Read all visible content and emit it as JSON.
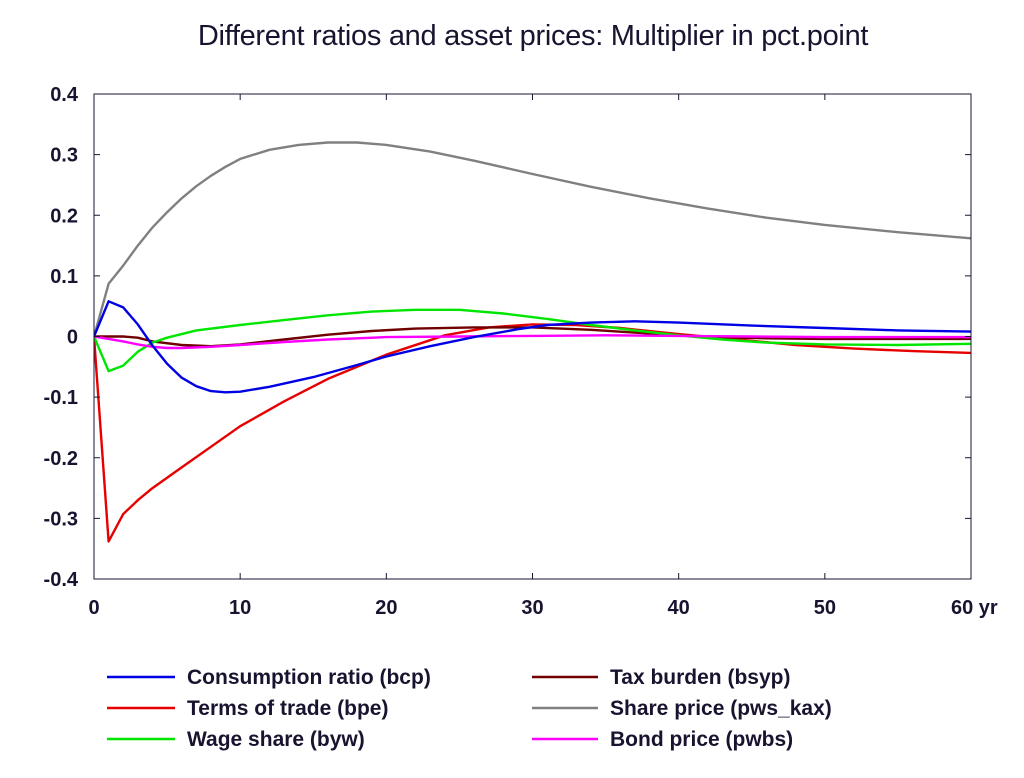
{
  "chart_data": {
    "type": "line",
    "title": "Different ratios and asset prices: Multiplier in pct.point",
    "xlabel": "",
    "ylabel": "",
    "xlim": [
      0,
      60
    ],
    "ylim": [
      -0.4,
      0.4
    ],
    "x_ticks": [
      0,
      10,
      20,
      30,
      40,
      50,
      60
    ],
    "x_tick_labels": [
      "0",
      "10",
      "20",
      "30",
      "40",
      "50",
      "60 yr"
    ],
    "y_ticks": [
      0.4,
      0.3,
      0.2,
      0.1,
      0,
      -0.1,
      -0.2,
      -0.3,
      -0.4
    ],
    "y_tick_labels": [
      "0.4",
      "0.3",
      "0.2",
      "0.1",
      "0",
      "-0.1",
      "-0.2",
      "-0.3",
      "-0.4"
    ],
    "grid": false,
    "legend_position": "bottom",
    "series": [
      {
        "name": "Consumption ratio (bcp)",
        "color": "#0000e6",
        "points": [
          [
            0,
            0
          ],
          [
            1,
            0.058
          ],
          [
            2,
            0.048
          ],
          [
            3,
            0.02
          ],
          [
            4,
            -0.015
          ],
          [
            5,
            -0.045
          ],
          [
            6,
            -0.068
          ],
          [
            7,
            -0.082
          ],
          [
            8,
            -0.09
          ],
          [
            9,
            -0.092
          ],
          [
            10,
            -0.091
          ],
          [
            12,
            -0.083
          ],
          [
            15,
            -0.067
          ],
          [
            18,
            -0.047
          ],
          [
            20,
            -0.033
          ],
          [
            23,
            -0.016
          ],
          [
            26,
            -0.001
          ],
          [
            29,
            0.012
          ],
          [
            31,
            0.019
          ],
          [
            34,
            0.023
          ],
          [
            37,
            0.025
          ],
          [
            40,
            0.023
          ],
          [
            45,
            0.018
          ],
          [
            50,
            0.014
          ],
          [
            55,
            0.01
          ],
          [
            60,
            0.008
          ]
        ]
      },
      {
        "name": "Terms of trade (bpe)",
        "color": "#e60000",
        "points": [
          [
            0,
            0
          ],
          [
            1,
            -0.338
          ],
          [
            2,
            -0.293
          ],
          [
            3,
            -0.27
          ],
          [
            4,
            -0.25
          ],
          [
            6,
            -0.216
          ],
          [
            8,
            -0.182
          ],
          [
            10,
            -0.148
          ],
          [
            13,
            -0.107
          ],
          [
            16,
            -0.07
          ],
          [
            20,
            -0.03
          ],
          [
            24,
            0.002
          ],
          [
            27,
            0.015
          ],
          [
            30,
            0.02
          ],
          [
            33,
            0.019
          ],
          [
            36,
            0.014
          ],
          [
            40,
            0.004
          ],
          [
            44,
            -0.005
          ],
          [
            48,
            -0.014
          ],
          [
            52,
            -0.02
          ],
          [
            56,
            -0.024
          ],
          [
            60,
            -0.027
          ]
        ]
      },
      {
        "name": "Wage share (byw)",
        "color": "#00e600",
        "points": [
          [
            0,
            0
          ],
          [
            1,
            -0.057
          ],
          [
            2,
            -0.048
          ],
          [
            3,
            -0.025
          ],
          [
            4,
            -0.01
          ],
          [
            5,
            -0.002
          ],
          [
            7,
            0.01
          ],
          [
            10,
            0.019
          ],
          [
            13,
            0.027
          ],
          [
            16,
            0.035
          ],
          [
            19,
            0.041
          ],
          [
            22,
            0.044
          ],
          [
            25,
            0.044
          ],
          [
            28,
            0.038
          ],
          [
            31,
            0.029
          ],
          [
            34,
            0.019
          ],
          [
            37,
            0.01
          ],
          [
            40,
            0.002
          ],
          [
            43,
            -0.005
          ],
          [
            46,
            -0.01
          ],
          [
            50,
            -0.013
          ],
          [
            55,
            -0.014
          ],
          [
            60,
            -0.012
          ]
        ]
      },
      {
        "name": "Tax burden (bsyp)",
        "color": "#700000",
        "points": [
          [
            0,
            0
          ],
          [
            2,
            0
          ],
          [
            3,
            -0.002
          ],
          [
            4,
            -0.008
          ],
          [
            6,
            -0.014
          ],
          [
            8,
            -0.016
          ],
          [
            10,
            -0.013
          ],
          [
            13,
            -0.005
          ],
          [
            16,
            0.003
          ],
          [
            19,
            0.009
          ],
          [
            22,
            0.013
          ],
          [
            26,
            0.015
          ],
          [
            30,
            0.015
          ],
          [
            34,
            0.011
          ],
          [
            38,
            0.005
          ],
          [
            42,
            -0.001
          ],
          [
            46,
            -0.003
          ],
          [
            50,
            -0.004
          ],
          [
            55,
            -0.004
          ],
          [
            60,
            -0.004
          ]
        ]
      },
      {
        "name": "Share price (pws_kax)",
        "color": "#808080",
        "points": [
          [
            0,
            0
          ],
          [
            1,
            0.087
          ],
          [
            2,
            0.117
          ],
          [
            3,
            0.15
          ],
          [
            4,
            0.18
          ],
          [
            5,
            0.205
          ],
          [
            6,
            0.228
          ],
          [
            7,
            0.248
          ],
          [
            8,
            0.265
          ],
          [
            9,
            0.28
          ],
          [
            10,
            0.293
          ],
          [
            12,
            0.308
          ],
          [
            14,
            0.316
          ],
          [
            16,
            0.32
          ],
          [
            18,
            0.32
          ],
          [
            20,
            0.316
          ],
          [
            23,
            0.305
          ],
          [
            26,
            0.29
          ],
          [
            30,
            0.268
          ],
          [
            34,
            0.247
          ],
          [
            38,
            0.228
          ],
          [
            42,
            0.211
          ],
          [
            46,
            0.196
          ],
          [
            50,
            0.184
          ],
          [
            55,
            0.172
          ],
          [
            60,
            0.162
          ]
        ]
      },
      {
        "name": "Bond price (pwbs)",
        "color": "#ff00ff",
        "points": [
          [
            0,
            0
          ],
          [
            1,
            -0.004
          ],
          [
            2,
            -0.008
          ],
          [
            3,
            -0.013
          ],
          [
            4,
            -0.017
          ],
          [
            5,
            -0.019
          ],
          [
            6,
            -0.019
          ],
          [
            8,
            -0.017
          ],
          [
            10,
            -0.014
          ],
          [
            13,
            -0.009
          ],
          [
            16,
            -0.005
          ],
          [
            20,
            -0.001
          ],
          [
            25,
            0
          ],
          [
            30,
            0.001
          ],
          [
            35,
            0.002
          ],
          [
            40,
            0.001
          ],
          [
            45,
            0
          ],
          [
            50,
            -0.001
          ],
          [
            55,
            -0.001
          ],
          [
            60,
            -0.001
          ]
        ]
      }
    ]
  }
}
